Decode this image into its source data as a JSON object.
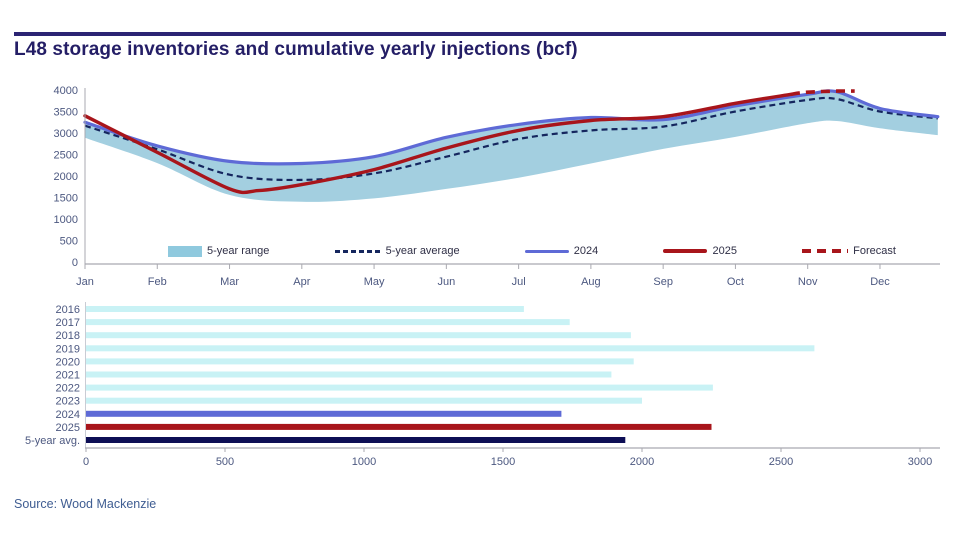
{
  "page": {
    "title": "L48 storage inventories and cumulative yearly injections (bcf)",
    "source": "Source: Wood Mackenzie"
  },
  "colors": {
    "band": "#a3cfe0",
    "line_2024": "#5e6ad6",
    "line_2025": "#a8151b",
    "line_avg": "#15265e",
    "forecast": "#a8151b",
    "bar_pale": "#c9f2f5",
    "bar_2024": "#5e6ad6",
    "bar_2025": "#a8151b",
    "bar_avg": "#0d0e55",
    "axis_line": "#a9a9b0",
    "axis_text": "#4c5880",
    "title_text": "#241e66",
    "divider": "#2b2473"
  },
  "legend": {
    "items": [
      {
        "id": "range",
        "label": "5-year range"
      },
      {
        "id": "average",
        "label": "5-year average"
      },
      {
        "id": "y2024",
        "label": "2024"
      },
      {
        "id": "y2025",
        "label": "2025"
      },
      {
        "id": "forecast",
        "label": "Forecast"
      }
    ]
  },
  "chart_data": [
    {
      "type": "line",
      "name": "L48 storage inventories (bcf)",
      "months": [
        "Jan",
        "Feb",
        "Mar",
        "Apr",
        "May",
        "Jun",
        "Jul",
        "Aug",
        "Sep",
        "Oct",
        "Nov",
        "Dec"
      ],
      "ylim": [
        0,
        4000
      ],
      "yticks": [
        0,
        500,
        1000,
        1500,
        2000,
        2500,
        3000,
        3500,
        4000
      ],
      "grid": false,
      "legend_position": "bottom-inside",
      "x_shared": [
        0,
        1,
        2,
        3,
        4,
        5,
        6,
        7,
        8,
        9,
        10,
        10.4,
        11,
        11.8
      ],
      "series": [
        {
          "name": "5-year range",
          "type": "band",
          "low": [
            2890,
            2300,
            1560,
            1400,
            1480,
            1700,
            1960,
            2290,
            2630,
            2910,
            3230,
            3280,
            3110,
            2950
          ],
          "high": [
            3230,
            2690,
            2330,
            2280,
            2440,
            2890,
            3190,
            3350,
            3300,
            3620,
            3890,
            3950,
            3560,
            3370
          ]
        },
        {
          "name": "5-year average",
          "type": "line",
          "style": "dashed",
          "values": [
            3170,
            2620,
            2030,
            1910,
            2060,
            2450,
            2860,
            3060,
            3150,
            3500,
            3770,
            3790,
            3500,
            3340
          ]
        },
        {
          "name": "2024",
          "type": "line",
          "style": "solid",
          "values": [
            3250,
            2700,
            2340,
            2290,
            2450,
            2900,
            3200,
            3360,
            3310,
            3630,
            3900,
            3960,
            3570,
            3380
          ]
        },
        {
          "name": "2025",
          "type": "line",
          "style": "solid",
          "x": [
            0,
            1,
            2,
            2.4,
            3,
            4,
            5,
            6,
            7,
            8,
            9,
            9.77
          ],
          "values": [
            3400,
            2550,
            1700,
            1660,
            1800,
            2150,
            2650,
            3060,
            3290,
            3380,
            3690,
            3900
          ]
        },
        {
          "name": "Forecast",
          "type": "line",
          "style": "dashed",
          "x": [
            9.77,
            10,
            10.4,
            10.65
          ],
          "values": [
            3900,
            3950,
            3975,
            3975
          ]
        }
      ]
    },
    {
      "type": "bar",
      "name": "Cumulative yearly injections (bcf)",
      "orientation": "horizontal",
      "categories": [
        "2016",
        "2017",
        "2018",
        "2019",
        "2020",
        "2021",
        "2022",
        "2023",
        "2024",
        "2025",
        "5-year avg."
      ],
      "values": [
        1575,
        1740,
        1960,
        2620,
        1970,
        1890,
        2255,
        2000,
        1710,
        2250,
        1940
      ],
      "bar_colors": [
        "pale",
        "pale",
        "pale",
        "pale",
        "pale",
        "pale",
        "pale",
        "pale",
        "blue",
        "red",
        "navy"
      ],
      "xlim": [
        0,
        3000
      ],
      "xticks": [
        0,
        500,
        1000,
        1500,
        2000,
        2500,
        3000
      ],
      "grid": false
    }
  ]
}
